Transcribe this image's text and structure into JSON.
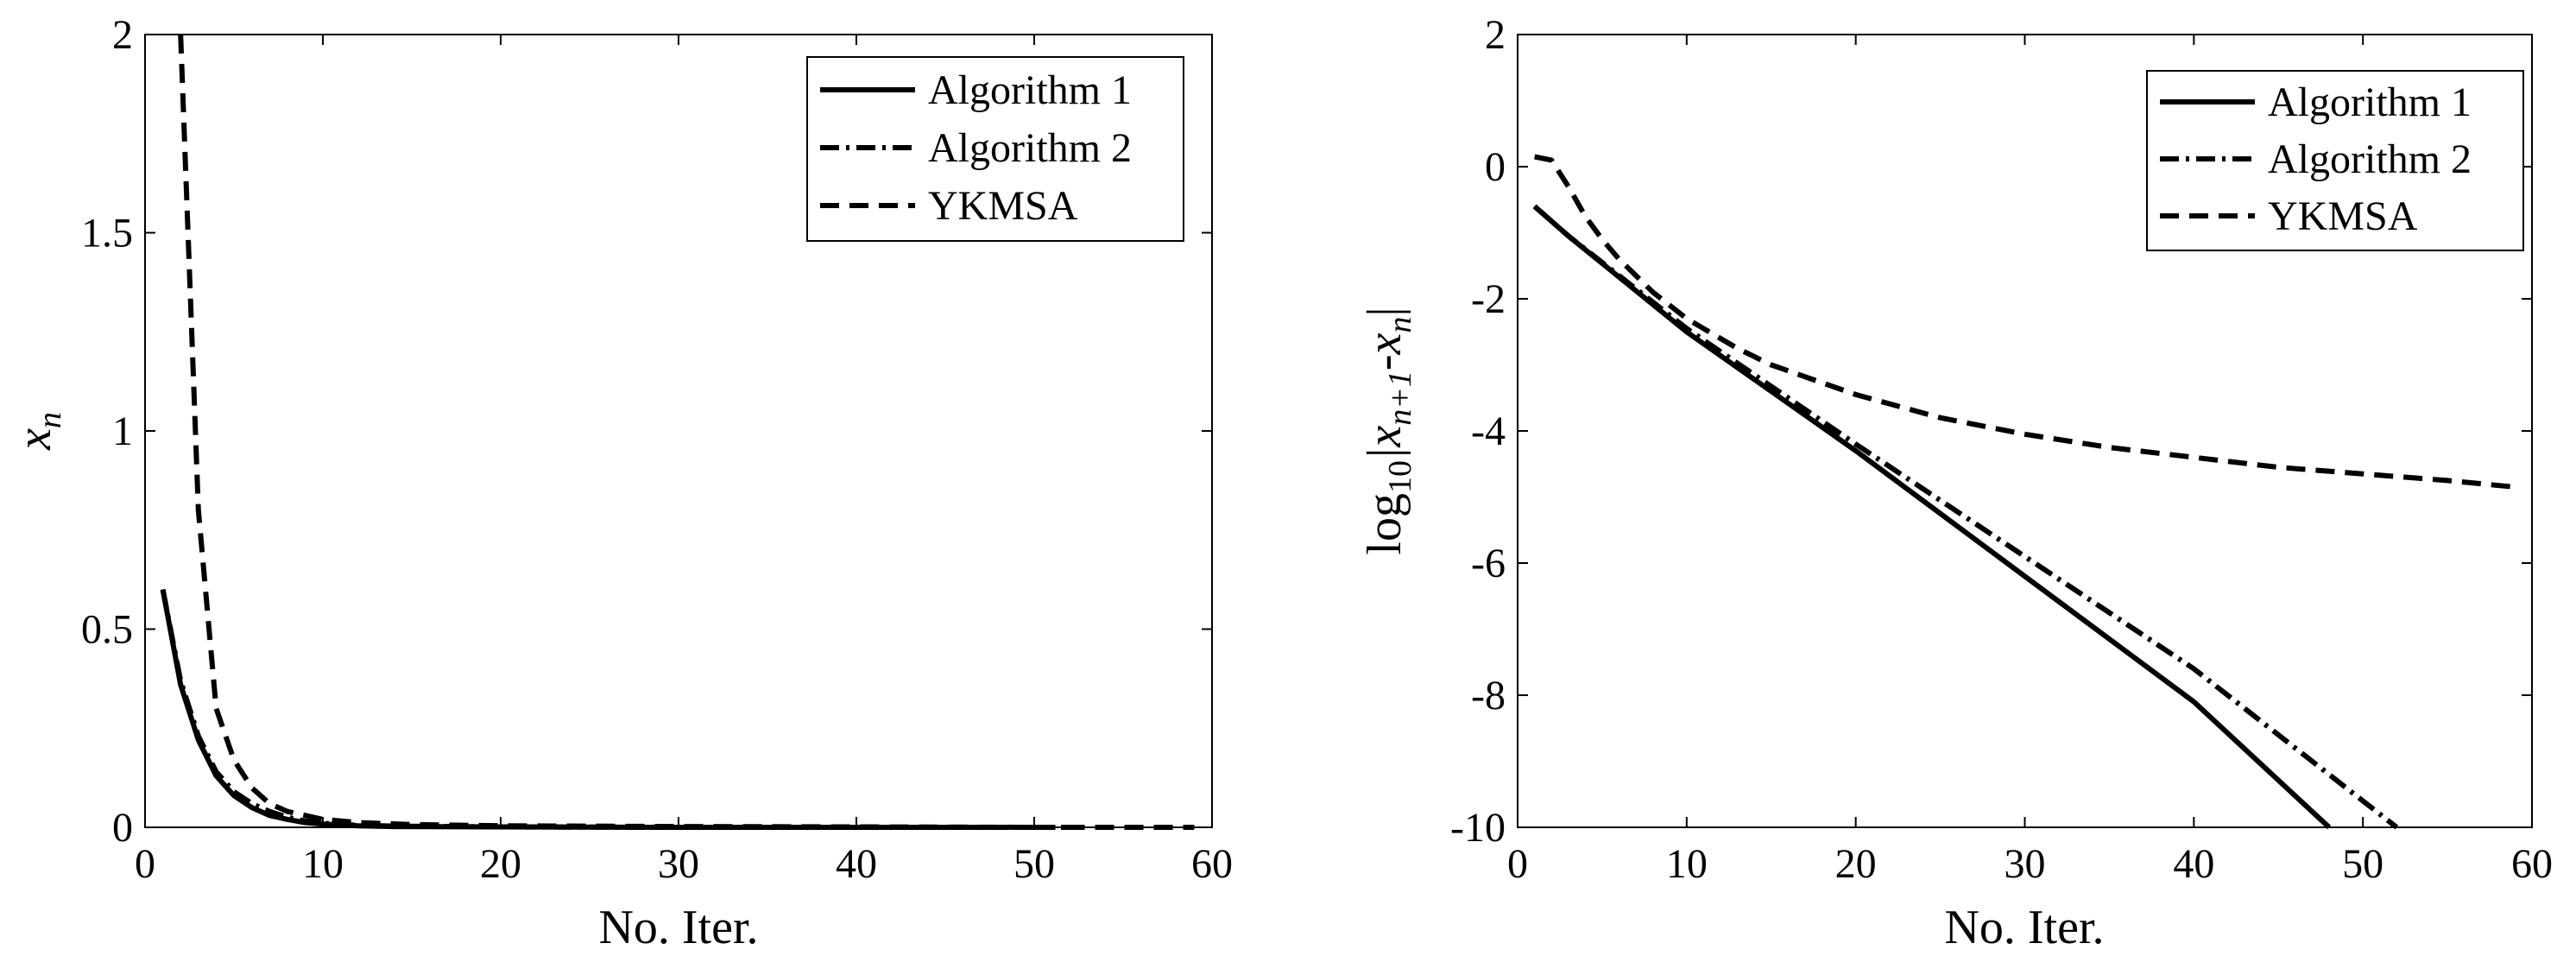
{
  "chart_data": [
    {
      "type": "line",
      "xlabel": "No. Iter.",
      "ylabel": "x",
      "ylabel_sub": "n",
      "xlim": [
        0,
        60
      ],
      "ylim": [
        0,
        2
      ],
      "xticks": [
        "0",
        "10",
        "20",
        "30",
        "40",
        "50",
        "60"
      ],
      "yticks": [
        "0",
        "0.5",
        "1",
        "1.5",
        "2"
      ],
      "legend_position": "top-right",
      "series": [
        {
          "name": "Algorithm 1",
          "style": "solid",
          "points": [
            [
              1,
              0.6
            ],
            [
              2,
              0.36
            ],
            [
              3,
              0.22
            ],
            [
              4,
              0.13
            ],
            [
              5,
              0.08
            ],
            [
              6,
              0.05
            ],
            [
              7,
              0.03
            ],
            [
              8,
              0.02
            ],
            [
              9,
              0.012
            ],
            [
              10,
              0.008
            ],
            [
              12,
              0.004
            ],
            [
              14,
              0.002
            ],
            [
              20,
              0.001
            ],
            [
              30,
              0.0
            ],
            [
              40,
              0.0
            ],
            [
              48,
              0.0
            ]
          ]
        },
        {
          "name": "Algorithm 2",
          "style": "dashdot",
          "points": [
            [
              1,
              0.6
            ],
            [
              2,
              0.37
            ],
            [
              3,
              0.23
            ],
            [
              4,
              0.14
            ],
            [
              5,
              0.09
            ],
            [
              6,
              0.06
            ],
            [
              7,
              0.04
            ],
            [
              8,
              0.025
            ],
            [
              9,
              0.016
            ],
            [
              10,
              0.01
            ],
            [
              12,
              0.005
            ],
            [
              14,
              0.003
            ],
            [
              20,
              0.001
            ],
            [
              30,
              0.0
            ],
            [
              40,
              0.0
            ],
            [
              52,
              0.0
            ]
          ]
        },
        {
          "name": "YKMSA",
          "style": "dashed",
          "points": [
            [
              2,
              2.0
            ],
            [
              3,
              0.8
            ],
            [
              4,
              0.3
            ],
            [
              5,
              0.17
            ],
            [
              6,
              0.1
            ],
            [
              7,
              0.06
            ],
            [
              8,
              0.04
            ],
            [
              9,
              0.03
            ],
            [
              10,
              0.02
            ],
            [
              12,
              0.012
            ],
            [
              15,
              0.007
            ],
            [
              20,
              0.004
            ],
            [
              30,
              0.002
            ],
            [
              40,
              0.001
            ],
            [
              50,
              0.0
            ],
            [
              59,
              0.0
            ]
          ]
        }
      ]
    },
    {
      "type": "line",
      "xlabel": "No. Iter.",
      "ylabel": "log",
      "ylabel_sub": "10",
      "ylabel_rest": "|x",
      "ylabel_rest_sub": "n+1",
      "ylabel_mid": "-x",
      "ylabel_mid_sub": "n",
      "ylabel_end": "|",
      "xlim": [
        0,
        60
      ],
      "ylim": [
        -10,
        2
      ],
      "xticks": [
        "0",
        "10",
        "20",
        "30",
        "40",
        "50",
        "60"
      ],
      "yticks": [
        "-10",
        "-8",
        "-6",
        "-4",
        "-2",
        "0",
        "2"
      ],
      "legend_position": "top-right",
      "series": [
        {
          "name": "Algorithm 1",
          "style": "solid",
          "points": [
            [
              1,
              -0.6
            ],
            [
              3,
              -1.05
            ],
            [
              10,
              -2.5
            ],
            [
              20,
              -4.3
            ],
            [
              30,
              -6.2
            ],
            [
              40,
              -8.1
            ],
            [
              48,
              -10.0
            ]
          ]
        },
        {
          "name": "Algorithm 2",
          "style": "dashdot",
          "points": [
            [
              1,
              -0.6
            ],
            [
              3,
              -1.05
            ],
            [
              10,
              -2.45
            ],
            [
              20,
              -4.2
            ],
            [
              30,
              -5.9
            ],
            [
              40,
              -7.6
            ],
            [
              52,
              -10.0
            ]
          ]
        },
        {
          "name": "YKMSA",
          "style": "dashed",
          "points": [
            [
              1,
              0.15
            ],
            [
              2,
              0.1
            ],
            [
              3,
              -0.3
            ],
            [
              4,
              -0.75
            ],
            [
              5,
              -1.1
            ],
            [
              6,
              -1.4
            ],
            [
              7,
              -1.65
            ],
            [
              8,
              -1.9
            ],
            [
              10,
              -2.3
            ],
            [
              13,
              -2.75
            ],
            [
              15,
              -3.0
            ],
            [
              20,
              -3.45
            ],
            [
              25,
              -3.8
            ],
            [
              30,
              -4.05
            ],
            [
              35,
              -4.25
            ],
            [
              40,
              -4.4
            ],
            [
              45,
              -4.55
            ],
            [
              50,
              -4.65
            ],
            [
              55,
              -4.75
            ],
            [
              59,
              -4.85
            ]
          ]
        }
      ]
    }
  ]
}
